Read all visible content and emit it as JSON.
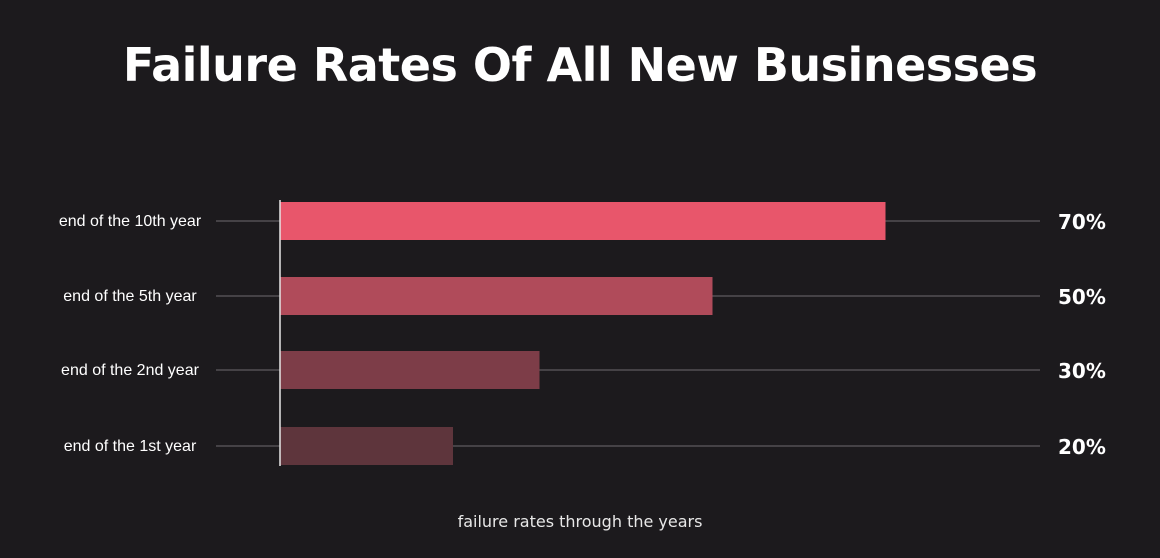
{
  "chart_data": {
    "type": "bar",
    "orientation": "horizontal",
    "title": "Failure Rates Of All New Businesses",
    "xlabel": "failure rates through the years",
    "categories": [
      "end of the 10th year",
      "end of the 5th year",
      "end of the 2nd year",
      "end of the 1st year"
    ],
    "values": [
      70,
      50,
      30,
      20
    ],
    "value_labels": [
      "70%",
      "50%",
      "30%",
      "20%"
    ],
    "bar_colors": [
      "#e8566b",
      "#b04b5a",
      "#7d3d48",
      "#5e353c"
    ],
    "xlim": [
      0,
      100
    ],
    "grid": true,
    "legend": "none"
  }
}
